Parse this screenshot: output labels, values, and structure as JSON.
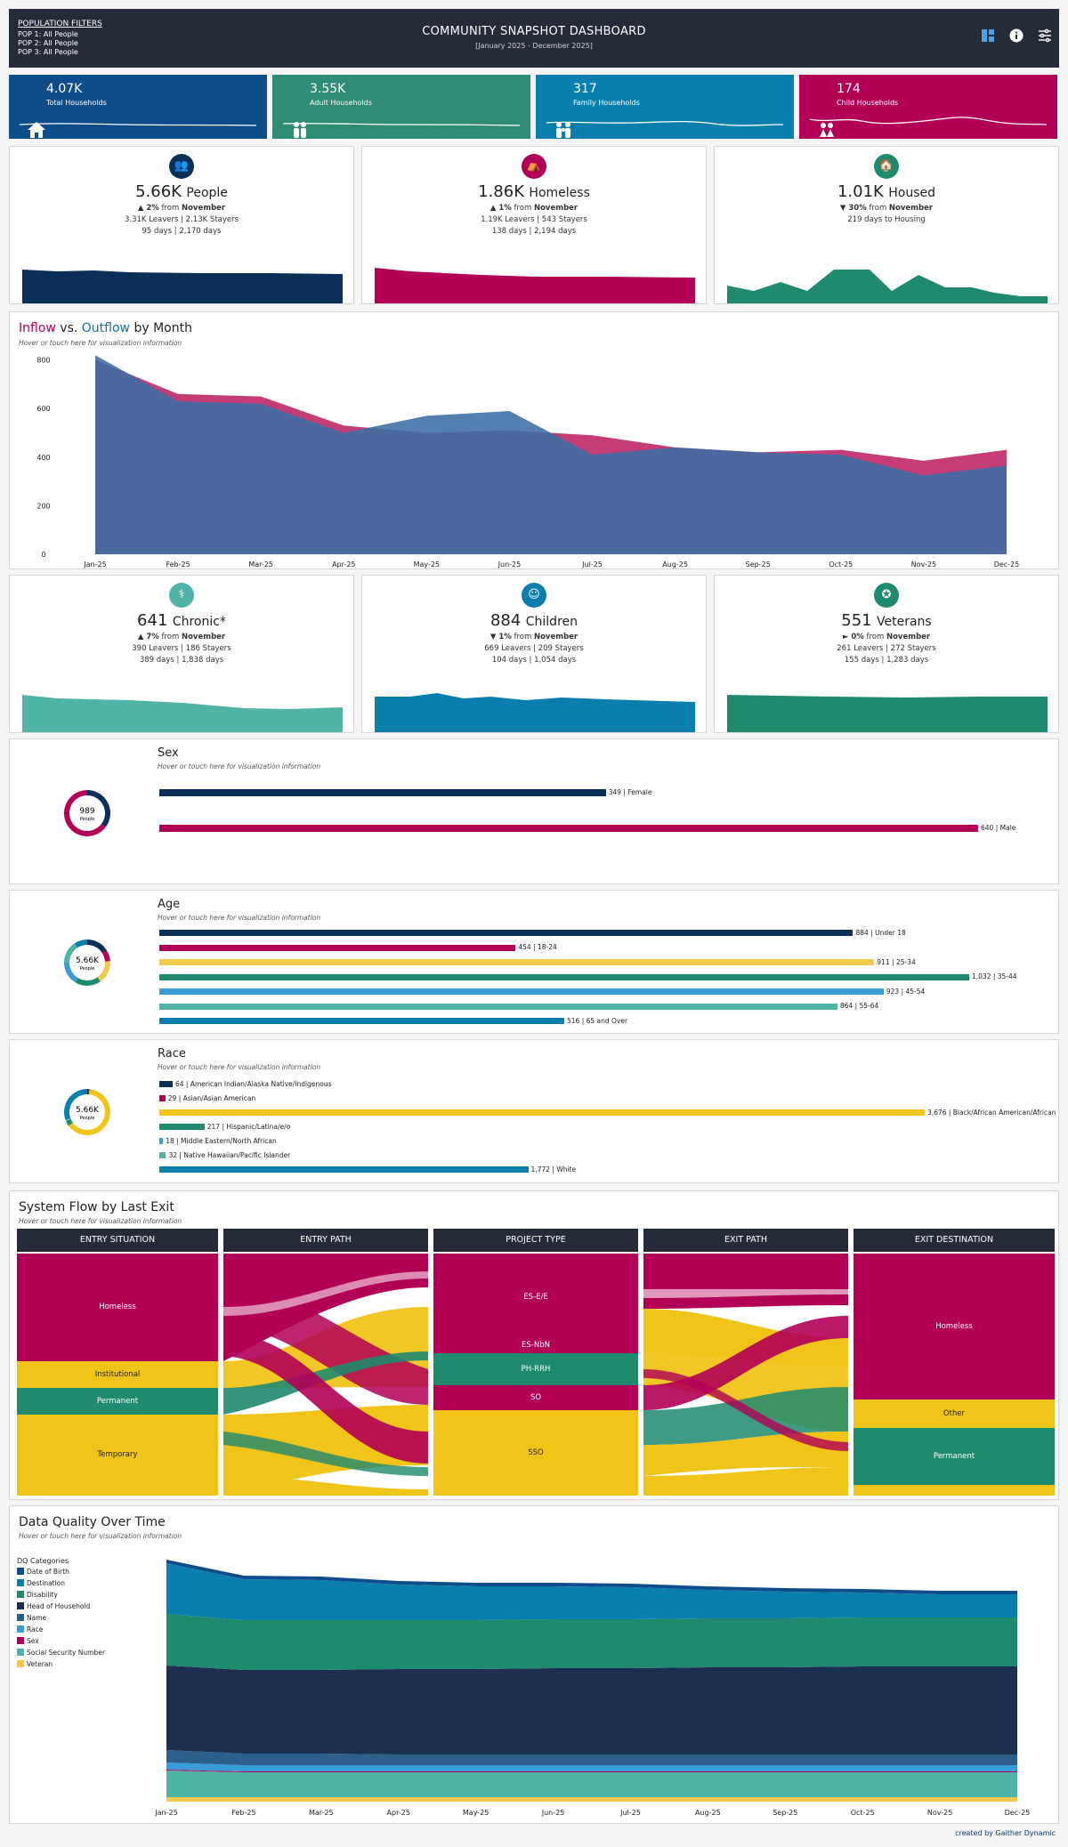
{
  "header": {
    "filters_title": "POPULATION FILTERS",
    "filters": [
      "POP 1: All People",
      "POP 2: All People",
      "POP 3: All People"
    ],
    "title": "COMMUNITY SNAPSHOT DASHBOARD",
    "subtitle": "[January 2025 - December 2025]",
    "icons": [
      "dashboard-icon",
      "info-icon",
      "sliders-icon"
    ]
  },
  "kpis": [
    {
      "value": "4.07K",
      "label": "Total Households",
      "color": "#0f4c8a",
      "icon": "house-icon"
    },
    {
      "value": "3.55K",
      "label": "Adult Households",
      "color": "#2e8b74",
      "icon": "adults-icon"
    },
    {
      "value": "317",
      "label": "Family Households",
      "color": "#0a7fad",
      "icon": "family-icon"
    },
    {
      "value": "174",
      "label": "Child Households",
      "color": "#b10056",
      "icon": "children-icon"
    }
  ],
  "summary_row1": [
    {
      "value": "5.66K",
      "unit": "People",
      "change": "▲ 2%",
      "change_word": "from",
      "change_ref": "November",
      "line2": "3.31K Leavers | 2.13K Stayers",
      "line3": "95 days | 2,170 days",
      "color": "#0b2f57",
      "icon": "people-icon"
    },
    {
      "value": "1.86K",
      "unit": "Homeless",
      "change": "▲ 1%",
      "change_word": "from",
      "change_ref": "November",
      "line2": "1.19K Leavers | 543 Stayers",
      "line3": "138 days | 2,194 days",
      "color": "#b10056",
      "icon": "homeless-icon"
    },
    {
      "value": "1.01K",
      "unit": "Housed",
      "change": "▼ 30%",
      "change_word": "from",
      "change_ref": "November",
      "line2": "219 days to Housing",
      "line3": "",
      "color": "#1f8a6e",
      "icon": "house-icon"
    }
  ],
  "flow_chart": {
    "title_in": "Inflow",
    "title_vs": "vs.",
    "title_out": "Outflow",
    "title_rest": "by Month",
    "hint": "Hover or touch here for visualization information"
  },
  "chart_data": [
    {
      "type": "area",
      "title": "Inflow vs. Outflow by Month",
      "categories": [
        "Jan-25",
        "Feb-25",
        "Mar-25",
        "Apr-25",
        "May-25",
        "Jun-25",
        "Jul-25",
        "Aug-25",
        "Sep-25",
        "Oct-25",
        "Nov-25",
        "Dec-25"
      ],
      "series": [
        {
          "name": "Inflow",
          "color": "#c2336e",
          "values": [
            800,
            660,
            650,
            530,
            500,
            510,
            490,
            440,
            420,
            430,
            385,
            430
          ]
        },
        {
          "name": "Outflow",
          "color": "#3a6ea5",
          "values": [
            820,
            630,
            620,
            500,
            570,
            590,
            410,
            440,
            420,
            410,
            325,
            365
          ]
        }
      ],
      "y_ticks": [
        0,
        200,
        400,
        600,
        800
      ],
      "ylim": [
        0,
        850
      ]
    },
    {
      "type": "bar",
      "title": "Sex",
      "center_value": "989",
      "center_label": "People",
      "categories": [
        "Female",
        "Male"
      ],
      "values": [
        349,
        640
      ],
      "colors": [
        "#0b2f57",
        "#b10056"
      ]
    },
    {
      "type": "bar",
      "title": "Age",
      "center_value": "5.66K",
      "center_label": "People",
      "categories": [
        "Under 18",
        "18-24",
        "25-34",
        "35-44",
        "45-54",
        "55-64",
        "65 and Over"
      ],
      "values": [
        884,
        454,
        911,
        1032,
        923,
        864,
        516
      ],
      "value_labels": [
        "884",
        "454",
        "911",
        "1,032",
        "923",
        "864",
        "516"
      ],
      "colors": [
        "#0b2f57",
        "#b10056",
        "#f2c94c",
        "#1f8a6e",
        "#3a9bd9",
        "#4fb3a6",
        "#0a7fad"
      ]
    },
    {
      "type": "bar",
      "title": "Race",
      "center_value": "5.66K",
      "center_label": "People",
      "categories": [
        "American Indian/Alaska Native/Indigenous",
        "Asian/Asian American",
        "Black/African American/African",
        "Hispanic/Latina/e/o",
        "Middle Eastern/North African",
        "Native Hawaiian/Pacific Islander",
        "White"
      ],
      "values": [
        64,
        29,
        3676,
        217,
        18,
        32,
        1772
      ],
      "value_labels": [
        "64",
        "29",
        "3,676",
        "217",
        "18",
        "32",
        "1,772"
      ],
      "colors": [
        "#0b2f57",
        "#b10056",
        "#f0c419",
        "#1f8a6e",
        "#3a9bd9",
        "#4fb3a6",
        "#0a7fad"
      ]
    },
    {
      "type": "area",
      "title": "Data Quality Over Time",
      "categories": [
        "Jan-25",
        "Feb-25",
        "Mar-25",
        "Apr-25",
        "May-25",
        "Jun-25",
        "Jul-25",
        "Aug-25",
        "Sep-25",
        "Oct-25",
        "Nov-25",
        "Dec-25"
      ],
      "series": [
        {
          "name": "Veteran",
          "color": "#f2c94c",
          "values": [
            5,
            5,
            5,
            5,
            5,
            5,
            5,
            5,
            5,
            5,
            5,
            5
          ]
        },
        {
          "name": "Social Security Number",
          "color": "#4fb3a6",
          "values": [
            30,
            28,
            28,
            28,
            28,
            28,
            28,
            28,
            28,
            28,
            28,
            28
          ]
        },
        {
          "name": "Sex",
          "color": "#b10056",
          "values": [
            1,
            1,
            1,
            1,
            1,
            1,
            1,
            1,
            1,
            1,
            1,
            1
          ]
        },
        {
          "name": "Race",
          "color": "#3a9bd9",
          "values": [
            8,
            7,
            7,
            7,
            7,
            7,
            7,
            7,
            7,
            7,
            7,
            7
          ]
        },
        {
          "name": "Name",
          "color": "#2c5f8a",
          "values": [
            14,
            13,
            13,
            12,
            12,
            12,
            12,
            12,
            12,
            12,
            12,
            12
          ]
        },
        {
          "name": "Head of Household",
          "color": "#1d2f4f",
          "values": [
            95,
            94,
            94,
            96,
            96,
            97,
            97,
            98,
            98,
            99,
            99,
            99
          ]
        },
        {
          "name": "Disability",
          "color": "#1f8a6e",
          "values": [
            58,
            56,
            56,
            55,
            55,
            55,
            55,
            55,
            55,
            55,
            55,
            55
          ]
        },
        {
          "name": "Destination",
          "color": "#0a7fad",
          "values": [
            57,
            46,
            45,
            40,
            38,
            37,
            36,
            32,
            30,
            28,
            26,
            26
          ]
        },
        {
          "name": "Date of Birth",
          "color": "#0f4c8a",
          "values": [
            4,
            4,
            4,
            4,
            4,
            4,
            4,
            4,
            4,
            4,
            4,
            4
          ]
        }
      ]
    }
  ],
  "summary_row2": [
    {
      "value": "641",
      "unit": "Chronic*",
      "change": "▲ 7%",
      "change_word": "from",
      "change_ref": "November",
      "line2": "390 Leavers | 186 Stayers",
      "line3": "389 days | 1,838 days",
      "color": "#4fb3a6",
      "icon": "chronic-icon"
    },
    {
      "value": "884",
      "unit": "Children",
      "change": "▼ 1%",
      "change_word": "from",
      "change_ref": "November",
      "line2": "669 Leavers | 209 Stayers",
      "line3": "104 days | 1,054 days",
      "color": "#0a7fad",
      "icon": "child-icon"
    },
    {
      "value": "551",
      "unit": "Veterans",
      "change": "► 0%",
      "change_word": "from",
      "change_ref": "November",
      "line2": "261 Leavers | 272 Stayers",
      "line3": "155 days | 1,283 days",
      "color": "#1f8a6e",
      "icon": "veteran-icon"
    }
  ],
  "demographics": {
    "hint": "Hover or touch here for visualization information"
  },
  "system_flow": {
    "title": "System Flow by Last Exit",
    "hint": "Hover or touch here for visualization information",
    "columns": [
      "ENTRY SITUATION",
      "ENTRY PATH",
      "PROJECT TYPE",
      "EXIT PATH",
      "EXIT DESTINATION"
    ],
    "entry_situation": [
      "Homeless",
      "Institutional",
      "Permanent",
      "Temporary"
    ],
    "project_type": [
      "ES-E/E",
      "ES-NbN",
      "PH-RRH",
      "SO",
      "SSO"
    ],
    "exit_destination": [
      "Homeless",
      "Other",
      "Permanent"
    ]
  },
  "dq": {
    "title": "Data Quality Over Time",
    "hint": "Hover or touch here for visualization information",
    "legend_title": "DQ Categories",
    "legend": [
      {
        "name": "Date of Birth",
        "color": "#0f4c8a"
      },
      {
        "name": "Destination",
        "color": "#0a7fad"
      },
      {
        "name": "Disability",
        "color": "#1f8a6e"
      },
      {
        "name": "Head of Household",
        "color": "#1d2f4f"
      },
      {
        "name": "Name",
        "color": "#2c5f8a"
      },
      {
        "name": "Race",
        "color": "#3a9bd9"
      },
      {
        "name": "Sex",
        "color": "#b10056"
      },
      {
        "name": "Social Security Number",
        "color": "#4fb3a6"
      },
      {
        "name": "Veteran",
        "color": "#f2c94c"
      }
    ]
  },
  "footer": {
    "credit": "created by Gaither Dynamic"
  }
}
